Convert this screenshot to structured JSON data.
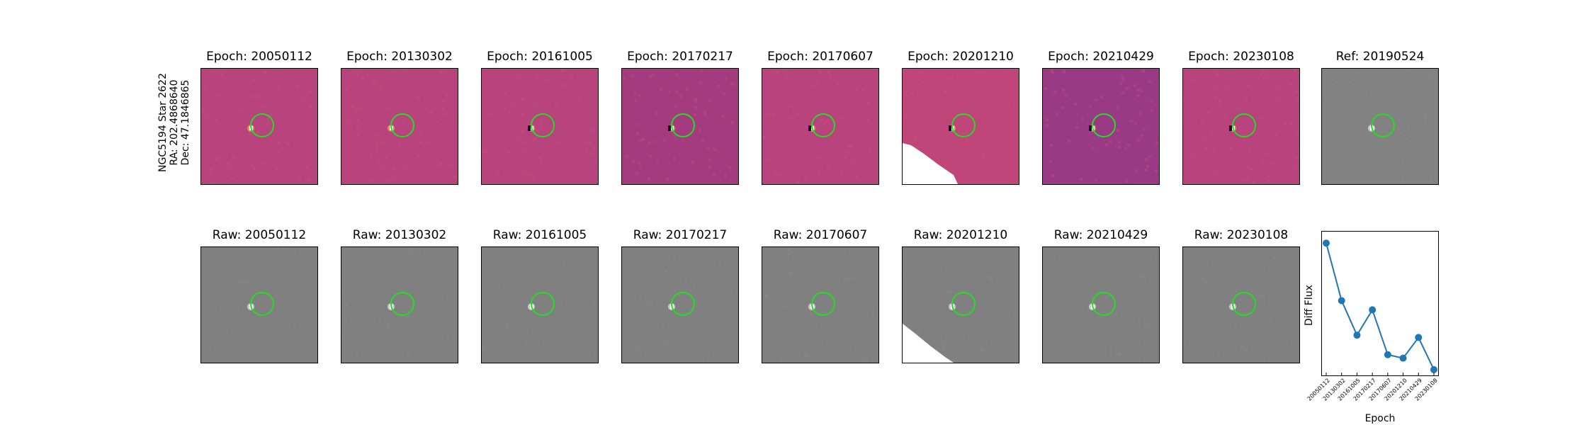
{
  "target": {
    "name": "NGC5194 Star 2622",
    "ra": "RA: 202.4868640",
    "dec": "Dec: 47.1846865"
  },
  "diff_panels": [
    {
      "title": "Epoch: 20050112",
      "bg": "#b8437d"
    },
    {
      "title": "Epoch: 20130302",
      "bg": "#b8437d"
    },
    {
      "title": "Epoch: 20161005",
      "bg": "#b8437d"
    },
    {
      "title": "Epoch: 20170217",
      "bg": "#a43b7f"
    },
    {
      "title": "Epoch: 20170607",
      "bg": "#b8437d"
    },
    {
      "title": "Epoch: 20201210",
      "bg": "#c0467a"
    },
    {
      "title": "Epoch: 20210429",
      "bg": "#9a3a85"
    },
    {
      "title": "Epoch: 20230108",
      "bg": "#b8437d"
    }
  ],
  "ref_panel": {
    "title": "Ref: 20190524",
    "bg": "#828282"
  },
  "raw_panels": [
    {
      "title": "Raw: 20050112"
    },
    {
      "title": "Raw: 20130302"
    },
    {
      "title": "Raw: 20161005"
    },
    {
      "title": "Raw: 20170217"
    },
    {
      "title": "Raw: 20170607"
    },
    {
      "title": "Raw: 20201210"
    },
    {
      "title": "Raw: 20210429"
    },
    {
      "title": "Raw: 20230108"
    }
  ],
  "colors": {
    "aperture": "#22dd22",
    "raw_bg": "#808080",
    "series": "#1f77b4"
  },
  "chart_data": {
    "type": "line",
    "xlabel": "Epoch",
    "ylabel": "Diff Flux",
    "categories": [
      "20050112",
      "20130302",
      "20161005",
      "20170217",
      "20170607",
      "20201210",
      "20210429",
      "20230108"
    ],
    "series": [
      {
        "values": [
          1.0,
          0.5,
          0.2,
          0.42,
          0.03,
          0.0,
          0.18,
          -0.1
        ]
      }
    ],
    "ylim": [
      -0.15,
      1.1
    ]
  }
}
